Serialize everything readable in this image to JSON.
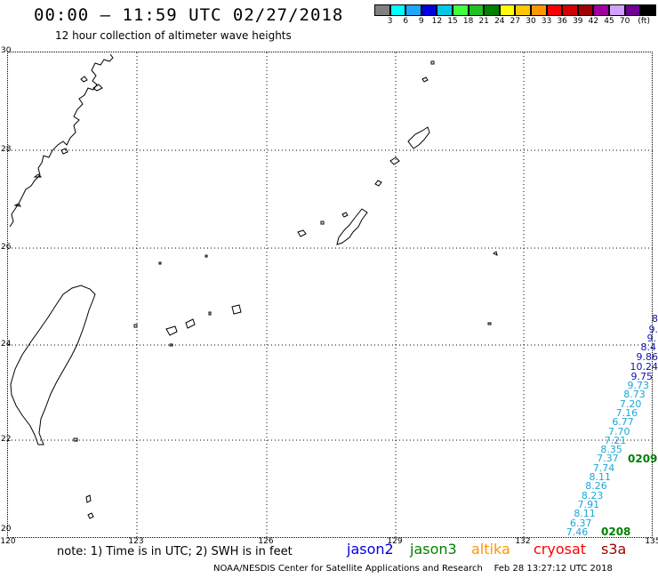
{
  "header": {
    "title": "00:00 – 11:59 UTC 02/27/2018",
    "subtitle": "12 hour collection of altimeter wave heights"
  },
  "color_scale": {
    "colors": [
      "#808080",
      "#00ffff",
      "#1ea7ff",
      "#0000e0",
      "#00c8e6",
      "#40ff40",
      "#20c020",
      "#008000",
      "#ffff00",
      "#ffc800",
      "#ff9600",
      "#ff0000",
      "#d20000",
      "#a00000",
      "#a000a0",
      "#d2a0ff",
      "#6e0096",
      "#000000"
    ],
    "labels": [
      "3",
      "6",
      "9",
      "12",
      "15",
      "18",
      "21",
      "24",
      "27",
      "30",
      "33",
      "36",
      "39",
      "42",
      "45",
      "70",
      "(ft)"
    ]
  },
  "map": {
    "lat_labels": [
      "30",
      "28",
      "26",
      "24",
      "22",
      "20"
    ],
    "lon_labels": [
      "120",
      "123",
      "126",
      "129",
      "132",
      "135"
    ]
  },
  "track": {
    "cyan_values": [
      "9.73",
      "8.73",
      "7.20",
      "7.16",
      "6.77",
      "7.70",
      "7.21",
      "8.35",
      "7.37",
      "7.74",
      "8.11",
      "8.26",
      "8.23",
      "7.91",
      "8.11",
      "6.37",
      "7.46"
    ],
    "blue_values": [
      "8",
      "9.",
      "9.",
      "8.4",
      "9.86",
      "10.24",
      "9.75"
    ],
    "time_labels": [
      "0209",
      "0208"
    ]
  },
  "footer": {
    "note": "note:  1) Time is in UTC;  2) SWH is in feet",
    "satellites": [
      {
        "name": "jason2",
        "color": "#0000e0"
      },
      {
        "name": "jason3",
        "color": "#008000"
      },
      {
        "name": "altika",
        "color": "#ff9600"
      },
      {
        "name": "cryosat",
        "color": "#ff0000"
      },
      {
        "name": "s3a",
        "color": "#a00000"
      }
    ],
    "credit": "NOAA/NESDIS Center for Satellite Applications and Research    Feb 28 13:27:12 UTC 2018"
  }
}
